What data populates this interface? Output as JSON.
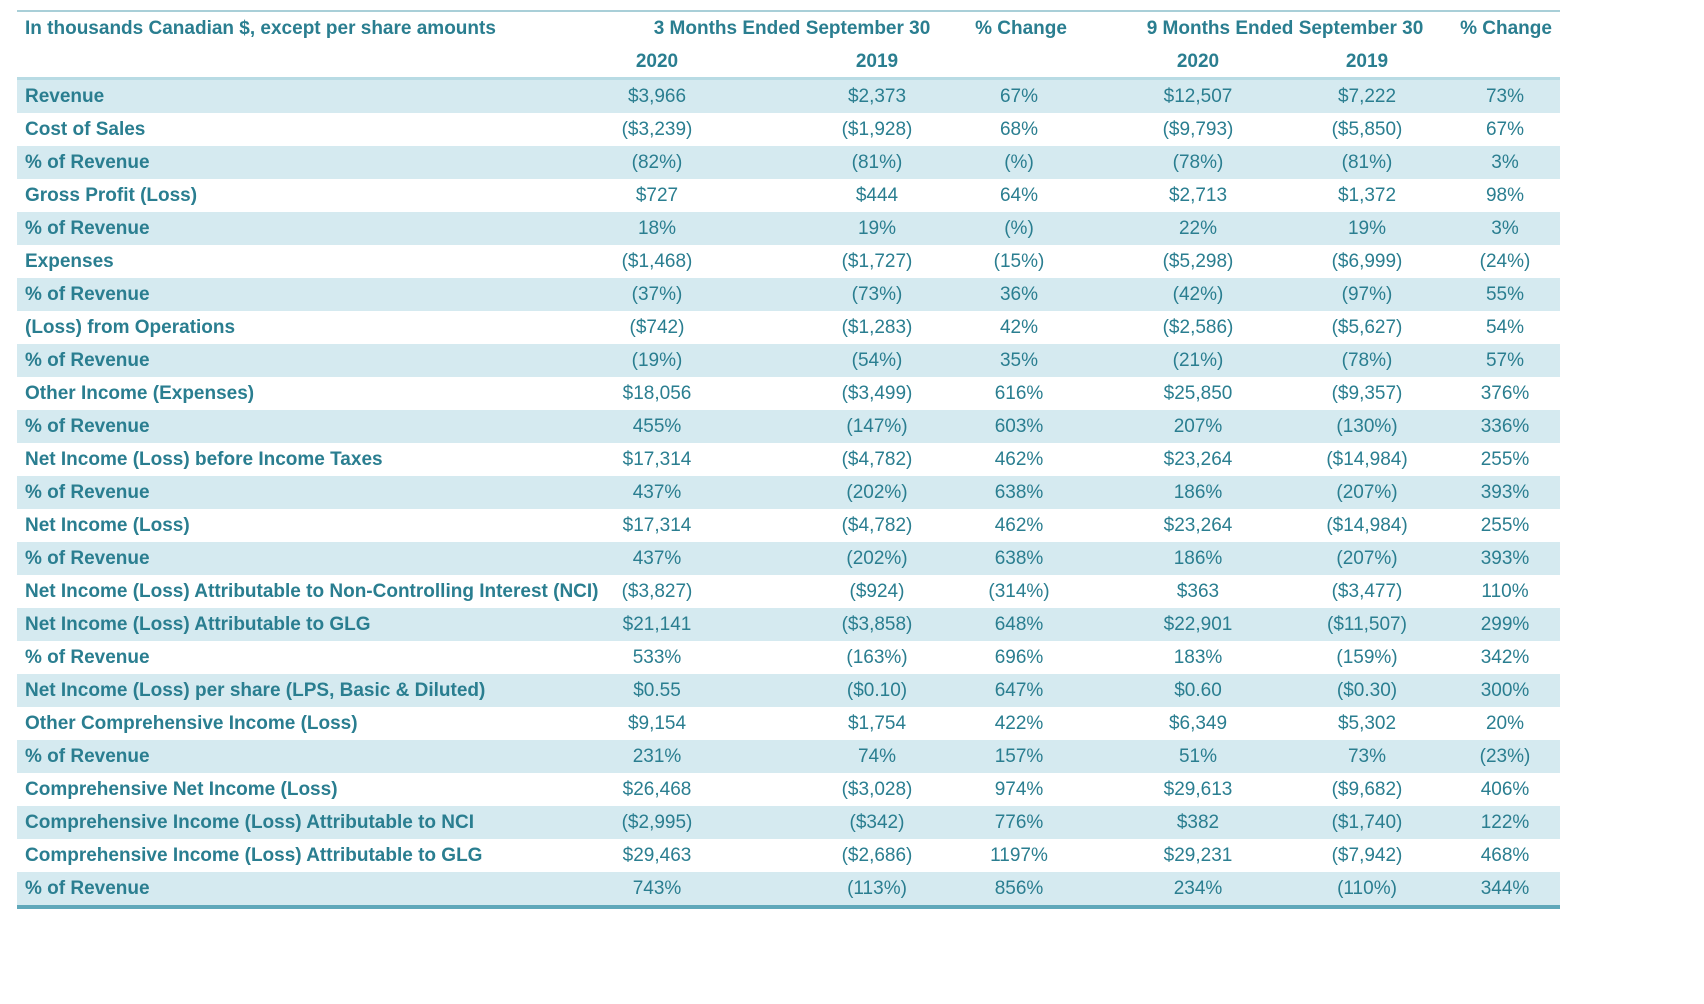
{
  "header": {
    "title": "In thousands Canadian $, except per share amounts",
    "group1": "3 Months Ended September 30",
    "group2": "9 Months Ended September 30",
    "pct_change_1": "% Change",
    "pct_change_2": "% Change",
    "years": [
      "2020",
      "2019",
      "2020",
      "2019"
    ]
  },
  "rows": [
    {
      "label": "Revenue",
      "values": [
        "$3,966",
        "$2,373",
        "67%",
        "$12,507",
        "$7,222",
        "73%"
      ]
    },
    {
      "label": "Cost of Sales",
      "values": [
        "($3,239)",
        "($1,928)",
        "68%",
        "($9,793)",
        "($5,850)",
        "67%"
      ]
    },
    {
      "label": "% of Revenue",
      "values": [
        "(82%)",
        "(81%)",
        "(%)",
        "(78%)",
        "(81%)",
        "3%"
      ]
    },
    {
      "label": "Gross Profit (Loss)",
      "values": [
        "$727",
        "$444",
        "64%",
        "$2,713",
        "$1,372",
        "98%"
      ]
    },
    {
      "label": "% of Revenue",
      "values": [
        "18%",
        "19%",
        "(%)",
        "22%",
        "19%",
        "3%"
      ]
    },
    {
      "label": "Expenses",
      "values": [
        "($1,468)",
        "($1,727)",
        "(15%)",
        "($5,298)",
        "($6,999)",
        "(24%)"
      ]
    },
    {
      "label": "% of Revenue",
      "values": [
        "(37%)",
        "(73%)",
        "36%",
        "(42%)",
        "(97%)",
        "55%"
      ]
    },
    {
      "label": "(Loss) from Operations",
      "values": [
        "($742)",
        "($1,283)",
        "42%",
        "($2,586)",
        "($5,627)",
        "54%"
      ]
    },
    {
      "label": "% of Revenue",
      "values": [
        "(19%)",
        "(54%)",
        "35%",
        "(21%)",
        "(78%)",
        "57%"
      ]
    },
    {
      "label": "Other Income (Expenses)",
      "values": [
        "$18,056",
        "($3,499)",
        "616%",
        "$25,850",
        "($9,357)",
        "376%"
      ]
    },
    {
      "label": "% of Revenue",
      "values": [
        "455%",
        "(147%)",
        "603%",
        "207%",
        "(130%)",
        "336%"
      ]
    },
    {
      "label": "Net Income (Loss) before Income Taxes",
      "values": [
        "$17,314",
        "($4,782)",
        "462%",
        "$23,264",
        "($14,984)",
        "255%"
      ]
    },
    {
      "label": "% of Revenue",
      "values": [
        "437%",
        "(202%)",
        "638%",
        "186%",
        "(207%)",
        "393%"
      ]
    },
    {
      "label": "Net Income (Loss)",
      "values": [
        "$17,314",
        "($4,782)",
        "462%",
        "$23,264",
        "($14,984)",
        "255%"
      ]
    },
    {
      "label": "% of Revenue",
      "values": [
        "437%",
        "(202%)",
        "638%",
        "186%",
        "(207%)",
        "393%"
      ]
    },
    {
      "label": "Net Income (Loss) Attributable to Non-Controlling Interest (NCI)",
      "values": [
        "($3,827)",
        "($924)",
        "(314%)",
        "$363",
        "($3,477)",
        "110%"
      ]
    },
    {
      "label": "Net Income (Loss) Attributable to GLG",
      "values": [
        "$21,141",
        "($3,858)",
        "648%",
        "$22,901",
        "($11,507)",
        "299%"
      ]
    },
    {
      "label": "% of Revenue",
      "values": [
        "533%",
        "(163%)",
        "696%",
        "183%",
        "(159%)",
        "342%"
      ]
    },
    {
      "label": "Net Income (Loss) per share (LPS, Basic & Diluted)",
      "values": [
        "$0.55",
        "($0.10)",
        "647%",
        "$0.60",
        "($0.30)",
        "300%"
      ]
    },
    {
      "label": "Other Comprehensive Income (Loss)",
      "values": [
        "$9,154",
        "$1,754",
        "422%",
        "$6,349",
        "$5,302",
        "20%"
      ]
    },
    {
      "label": "% of Revenue",
      "values": [
        "231%",
        "74%",
        "157%",
        "51%",
        "73%",
        "(23%)"
      ]
    },
    {
      "label": "Comprehensive Net Income (Loss)",
      "values": [
        "$26,468",
        "($3,028)",
        "974%",
        "$29,613",
        "($9,682)",
        "406%"
      ]
    },
    {
      "label": "Comprehensive Income (Loss) Attributable to NCI",
      "values": [
        "($2,995)",
        "($342)",
        "776%",
        "$382",
        "($1,740)",
        "122%"
      ]
    },
    {
      "label": "Comprehensive Income (Loss) Attributable to GLG",
      "values": [
        "$29,463",
        "($2,686)",
        "1197%",
        "$29,231",
        "($7,942)",
        "468%"
      ]
    },
    {
      "label": "% of Revenue",
      "values": [
        "743%",
        "(113%)",
        "856%",
        "234%",
        "(110%)",
        "344%"
      ]
    }
  ],
  "colors": {
    "text": "#2a7e90",
    "shade": "#d5eaf0",
    "rule": "#5fa8ba"
  }
}
